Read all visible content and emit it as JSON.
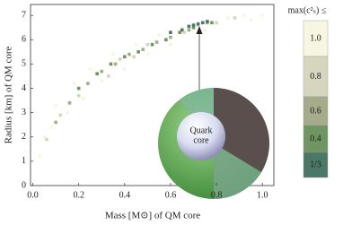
{
  "chart_data": {
    "type": "scatter",
    "x_label": "Mass [M⊙] of QM core",
    "y_label": "Radius [km] of QM core",
    "legend_title": "max(c²ₛ) ≤",
    "annotation": [
      "Quark",
      "core"
    ],
    "xlim": [
      -0.01,
      1.05
    ],
    "ylim": [
      0,
      7.45
    ],
    "xticks": [
      {
        "value": 0,
        "label": "0.0"
      },
      0.2,
      0.4,
      0.6,
      0.8,
      {
        "value": 1,
        "label": "1.0"
      }
    ],
    "yticks": [
      0,
      1,
      2,
      3,
      4,
      5,
      6,
      7
    ],
    "series": [
      {
        "name": "1.0",
        "color": "#f7f6e0",
        "x": [
          0.03,
          0.05,
          0.08,
          0.1,
          0.15,
          0.18,
          0.22,
          0.25,
          0.3,
          0.35,
          0.4,
          0.45,
          0.5,
          0.55,
          0.6,
          0.65,
          0.75,
          0.85,
          0.92,
          1.0,
          0.95
        ],
        "y": [
          1.2,
          2.0,
          2.4,
          3.3,
          3.0,
          4.2,
          3.6,
          4.8,
          4.3,
          5.4,
          4.8,
          5.8,
          5.4,
          6.2,
          5.8,
          6.5,
          6.4,
          6.9,
          7.0,
          7.0,
          6.8
        ]
      },
      {
        "name": "0.8",
        "color": "#d6d6bf",
        "x": [
          0.06,
          0.12,
          0.2,
          0.28,
          0.33,
          0.38,
          0.44,
          0.5,
          0.58,
          0.66,
          0.72,
          0.8,
          0.88
        ],
        "y": [
          1.9,
          2.9,
          3.7,
          4.6,
          4.5,
          5.2,
          5.3,
          5.8,
          6.0,
          6.3,
          6.6,
          6.7,
          6.9
        ]
      },
      {
        "name": "0.6",
        "color": "#a6ab8b",
        "x": [
          0.1,
          0.16,
          0.24,
          0.3,
          0.36,
          0.42,
          0.48,
          0.54,
          0.6,
          0.68,
          0.76
        ],
        "y": [
          2.6,
          3.4,
          4.2,
          4.7,
          5.0,
          5.4,
          5.6,
          5.9,
          6.1,
          6.4,
          6.7
        ]
      },
      {
        "name": "0.4",
        "color": "#6f9560",
        "x": [
          0.2,
          0.28,
          0.34,
          0.4,
          0.46,
          0.52,
          0.58,
          0.64,
          0.7,
          0.78
        ],
        "y": [
          4.0,
          4.6,
          5.0,
          5.3,
          5.5,
          5.8,
          6.0,
          6.3,
          6.5,
          6.7
        ]
      },
      {
        "name": "1/3",
        "color": "#4b7766",
        "x": [
          0.6,
          0.65,
          0.68,
          0.7,
          0.72,
          0.74,
          0.76
        ],
        "y": [
          6.3,
          6.4,
          6.55,
          6.6,
          6.65,
          6.7,
          6.75
        ]
      }
    ]
  }
}
